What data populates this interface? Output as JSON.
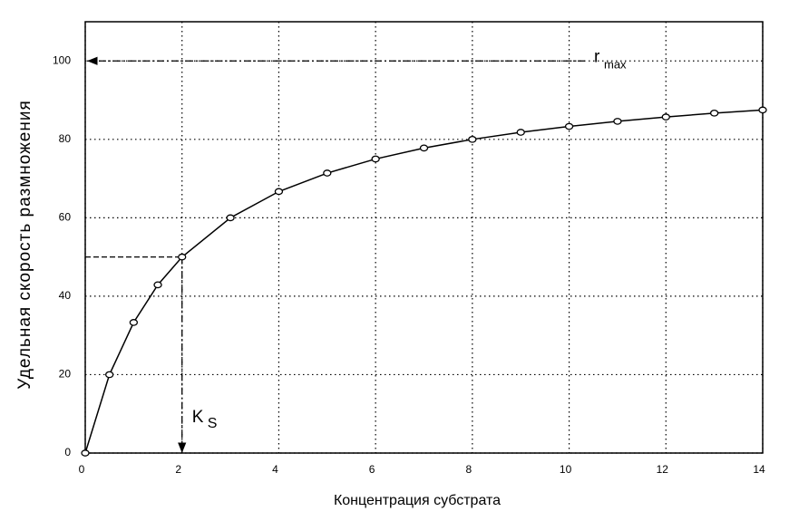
{
  "chart_data": {
    "type": "line",
    "x_label": "Концентрация субстрата",
    "y_label": "Удельная скорость размножения",
    "x": [
      0,
      0.5,
      1,
      1.5,
      2,
      3,
      4,
      5,
      6,
      7,
      8,
      9,
      10,
      11,
      12,
      13,
      14
    ],
    "values": [
      0,
      20,
      33.3,
      42.9,
      50,
      60,
      66.7,
      71.4,
      75,
      77.8,
      80,
      81.8,
      83.3,
      84.6,
      85.7,
      86.7,
      87.5
    ],
    "color": "#000000",
    "xlim": [
      0,
      14
    ],
    "xticks": [
      0,
      2,
      4,
      6,
      8,
      10,
      12,
      14
    ],
    "ylim": [
      0,
      110
    ],
    "yticks": [
      0,
      20,
      40,
      60,
      80,
      100
    ],
    "grid": true,
    "annotations": [
      {
        "text": "r",
        "subscript": "max",
        "y": 100
      },
      {
        "text": "K",
        "subscript": "S",
        "x": 2,
        "y": 50
      }
    ]
  }
}
